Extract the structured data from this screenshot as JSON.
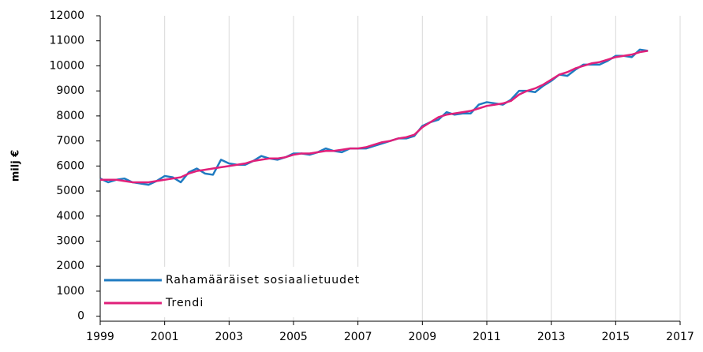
{
  "chart_data": {
    "type": "line",
    "y_label": "milj €",
    "x": [
      1999,
      1999.25,
      1999.5,
      1999.75,
      2000,
      2000.25,
      2000.5,
      2000.75,
      2001,
      2001.25,
      2001.5,
      2001.75,
      2002,
      2002.25,
      2002.5,
      2002.75,
      2003,
      2003.25,
      2003.5,
      2003.75,
      2004,
      2004.25,
      2004.5,
      2004.75,
      2005,
      2005.25,
      2005.5,
      2005.75,
      2006,
      2006.25,
      2006.5,
      2006.75,
      2007,
      2007.25,
      2007.5,
      2007.75,
      2008,
      2008.25,
      2008.5,
      2008.75,
      2009,
      2009.25,
      2009.5,
      2009.75,
      2010,
      2010.25,
      2010.5,
      2010.75,
      2011,
      2011.25,
      2011.5,
      2011.75,
      2012,
      2012.25,
      2012.5,
      2012.75,
      2013,
      2013.25,
      2013.5,
      2013.75,
      2014,
      2014.25,
      2014.5,
      2014.75,
      2015,
      2015.25,
      2015.5,
      2015.75,
      2016
    ],
    "series": [
      {
        "name": "Rahamääräiset sosiaalietuudet",
        "color": "#1f7bc1",
        "values": [
          5500,
          5350,
          5450,
          5500,
          5350,
          5300,
          5250,
          5400,
          5600,
          5550,
          5350,
          5750,
          5900,
          5700,
          5650,
          6250,
          6100,
          6050,
          6050,
          6200,
          6400,
          6300,
          6250,
          6350,
          6500,
          6500,
          6450,
          6550,
          6700,
          6600,
          6550,
          6700,
          6700,
          6700,
          6800,
          6900,
          7000,
          7100,
          7100,
          7200,
          7600,
          7750,
          7850,
          8150,
          8050,
          8100,
          8100,
          8450,
          8550,
          8500,
          8450,
          8650,
          9000,
          9000,
          8950,
          9200,
          9400,
          9650,
          9600,
          9850,
          10050,
          10050,
          10050,
          10200,
          10400,
          10400,
          10350,
          10650,
          10600
        ]
      },
      {
        "name": "Trendi",
        "color": "#e0207a",
        "values": [
          5450,
          5450,
          5450,
          5400,
          5350,
          5350,
          5350,
          5400,
          5450,
          5500,
          5550,
          5700,
          5800,
          5850,
          5900,
          5950,
          6000,
          6050,
          6100,
          6200,
          6250,
          6300,
          6300,
          6350,
          6450,
          6500,
          6500,
          6550,
          6600,
          6600,
          6650,
          6700,
          6700,
          6750,
          6850,
          6950,
          7000,
          7100,
          7150,
          7250,
          7550,
          7750,
          7950,
          8050,
          8100,
          8150,
          8200,
          8300,
          8400,
          8450,
          8500,
          8600,
          8850,
          9000,
          9100,
          9250,
          9450,
          9650,
          9750,
          9900,
          10000,
          10100,
          10150,
          10250,
          10350,
          10400,
          10450,
          10550,
          10600
        ]
      }
    ],
    "xlim": [
      1999,
      2017
    ],
    "xticks": [
      1999,
      2001,
      2003,
      2005,
      2007,
      2009,
      2011,
      2013,
      2015,
      2017
    ],
    "ylim": [
      -200,
      12000
    ],
    "yticks": [
      0,
      1000,
      2000,
      3000,
      4000,
      5000,
      6000,
      7000,
      8000,
      9000,
      10000,
      11000,
      12000
    ],
    "grid": "x",
    "legend": "lower left"
  }
}
